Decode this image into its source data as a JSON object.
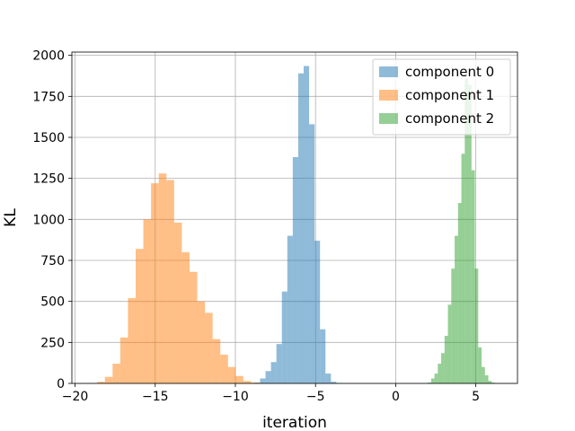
{
  "chart_data": {
    "type": "histogram",
    "xlabel": "iteration",
    "ylabel": "KL",
    "xlim": [
      -20.2,
      7.6
    ],
    "ylim": [
      0,
      2020
    ],
    "xticks": [
      -20,
      -15,
      -10,
      -5,
      0,
      5
    ],
    "yticks": [
      0,
      250,
      500,
      750,
      1000,
      1250,
      1500,
      1750,
      2000
    ],
    "xtick_labels": [
      "−20",
      "−15",
      "−10",
      "−5",
      "0",
      "5"
    ],
    "ytick_labels": [
      "0",
      "250",
      "500",
      "750",
      "1000",
      "1250",
      "1500",
      "1750",
      "2000"
    ],
    "grid": true,
    "legend_position": "top-right",
    "series": [
      {
        "name": "component 0",
        "color": "#1f77b4",
        "alpha": 0.5,
        "bin_start": -8.8,
        "bin_width": 0.34,
        "counts": [
          5,
          30,
          75,
          130,
          240,
          560,
          900,
          1380,
          1890,
          1935,
          1580,
          870,
          330,
          60,
          10,
          3
        ]
      },
      {
        "name": "component 1",
        "color": "#ff7f0e",
        "alpha": 0.5,
        "bin_start": -19.1,
        "bin_width": 0.48,
        "counts": [
          3,
          10,
          40,
          120,
          280,
          520,
          820,
          1000,
          1220,
          1280,
          1240,
          980,
          800,
          680,
          500,
          430,
          270,
          175,
          100,
          45,
          15,
          5
        ]
      },
      {
        "name": "component 2",
        "color": "#2ca02c",
        "alpha": 0.5,
        "bin_start": 2.0,
        "bin_width": 0.21,
        "counts": [
          5,
          30,
          60,
          120,
          185,
          290,
          480,
          700,
          900,
          1100,
          1400,
          1860,
          1820,
          1300,
          700,
          220,
          100,
          50,
          15,
          5
        ]
      }
    ]
  }
}
